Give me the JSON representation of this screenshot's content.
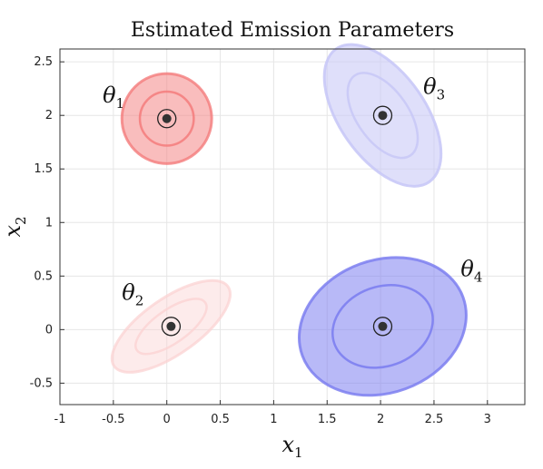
{
  "chart_data": {
    "type": "scatter",
    "title": "Estimated Emission Parameters",
    "xlabel": {
      "base": "x",
      "sub": "1"
    },
    "ylabel": {
      "base": "x",
      "sub": "2"
    },
    "xlim": [
      -1,
      3.35
    ],
    "ylim": [
      -0.7,
      2.62
    ],
    "xticks": [
      -1,
      -0.5,
      0,
      0.5,
      1,
      1.5,
      2,
      2.5,
      3
    ],
    "xtick_labels": [
      "-1",
      "-0.5",
      "0",
      "0.5",
      "1",
      "1.5",
      "2",
      "2.5",
      "3"
    ],
    "yticks": [
      -0.5,
      0,
      0.5,
      1,
      1.5,
      2,
      2.5
    ],
    "ytick_labels": [
      "-0.5",
      "0",
      "0.5",
      "1",
      "1.5",
      "2",
      "2.5"
    ],
    "grid": true,
    "components": [
      {
        "label": {
          "base": "θ",
          "sub": "1"
        },
        "mean": [
          0.0,
          1.97
        ],
        "rx": 0.42,
        "ry": 0.42,
        "angle_deg": 0,
        "color": "#f47c7c",
        "opacity": 0.5,
        "label_at": [
          -0.6,
          2.12
        ]
      },
      {
        "label": {
          "base": "θ",
          "sub": "2"
        },
        "mean": [
          0.04,
          0.03
        ],
        "rx": 0.65,
        "ry": 0.26,
        "angle_deg": 35,
        "color": "#fbd3d3",
        "opacity": 0.45,
        "label_at": [
          -0.42,
          0.28
        ]
      },
      {
        "label": {
          "base": "θ",
          "sub": "3"
        },
        "mean": [
          2.02,
          2.0
        ],
        "rx": 0.76,
        "ry": 0.4,
        "angle_deg": -55,
        "color": "#c9c9f7",
        "opacity": 0.6,
        "label_at": [
          2.4,
          2.2
        ]
      },
      {
        "label": {
          "base": "θ",
          "sub": "4"
        },
        "mean": [
          2.02,
          0.03
        ],
        "rx": 0.8,
        "ry": 0.62,
        "angle_deg": 20,
        "color": "#7d7ff0",
        "opacity": 0.55,
        "label_at": [
          2.75,
          0.5
        ]
      }
    ]
  }
}
